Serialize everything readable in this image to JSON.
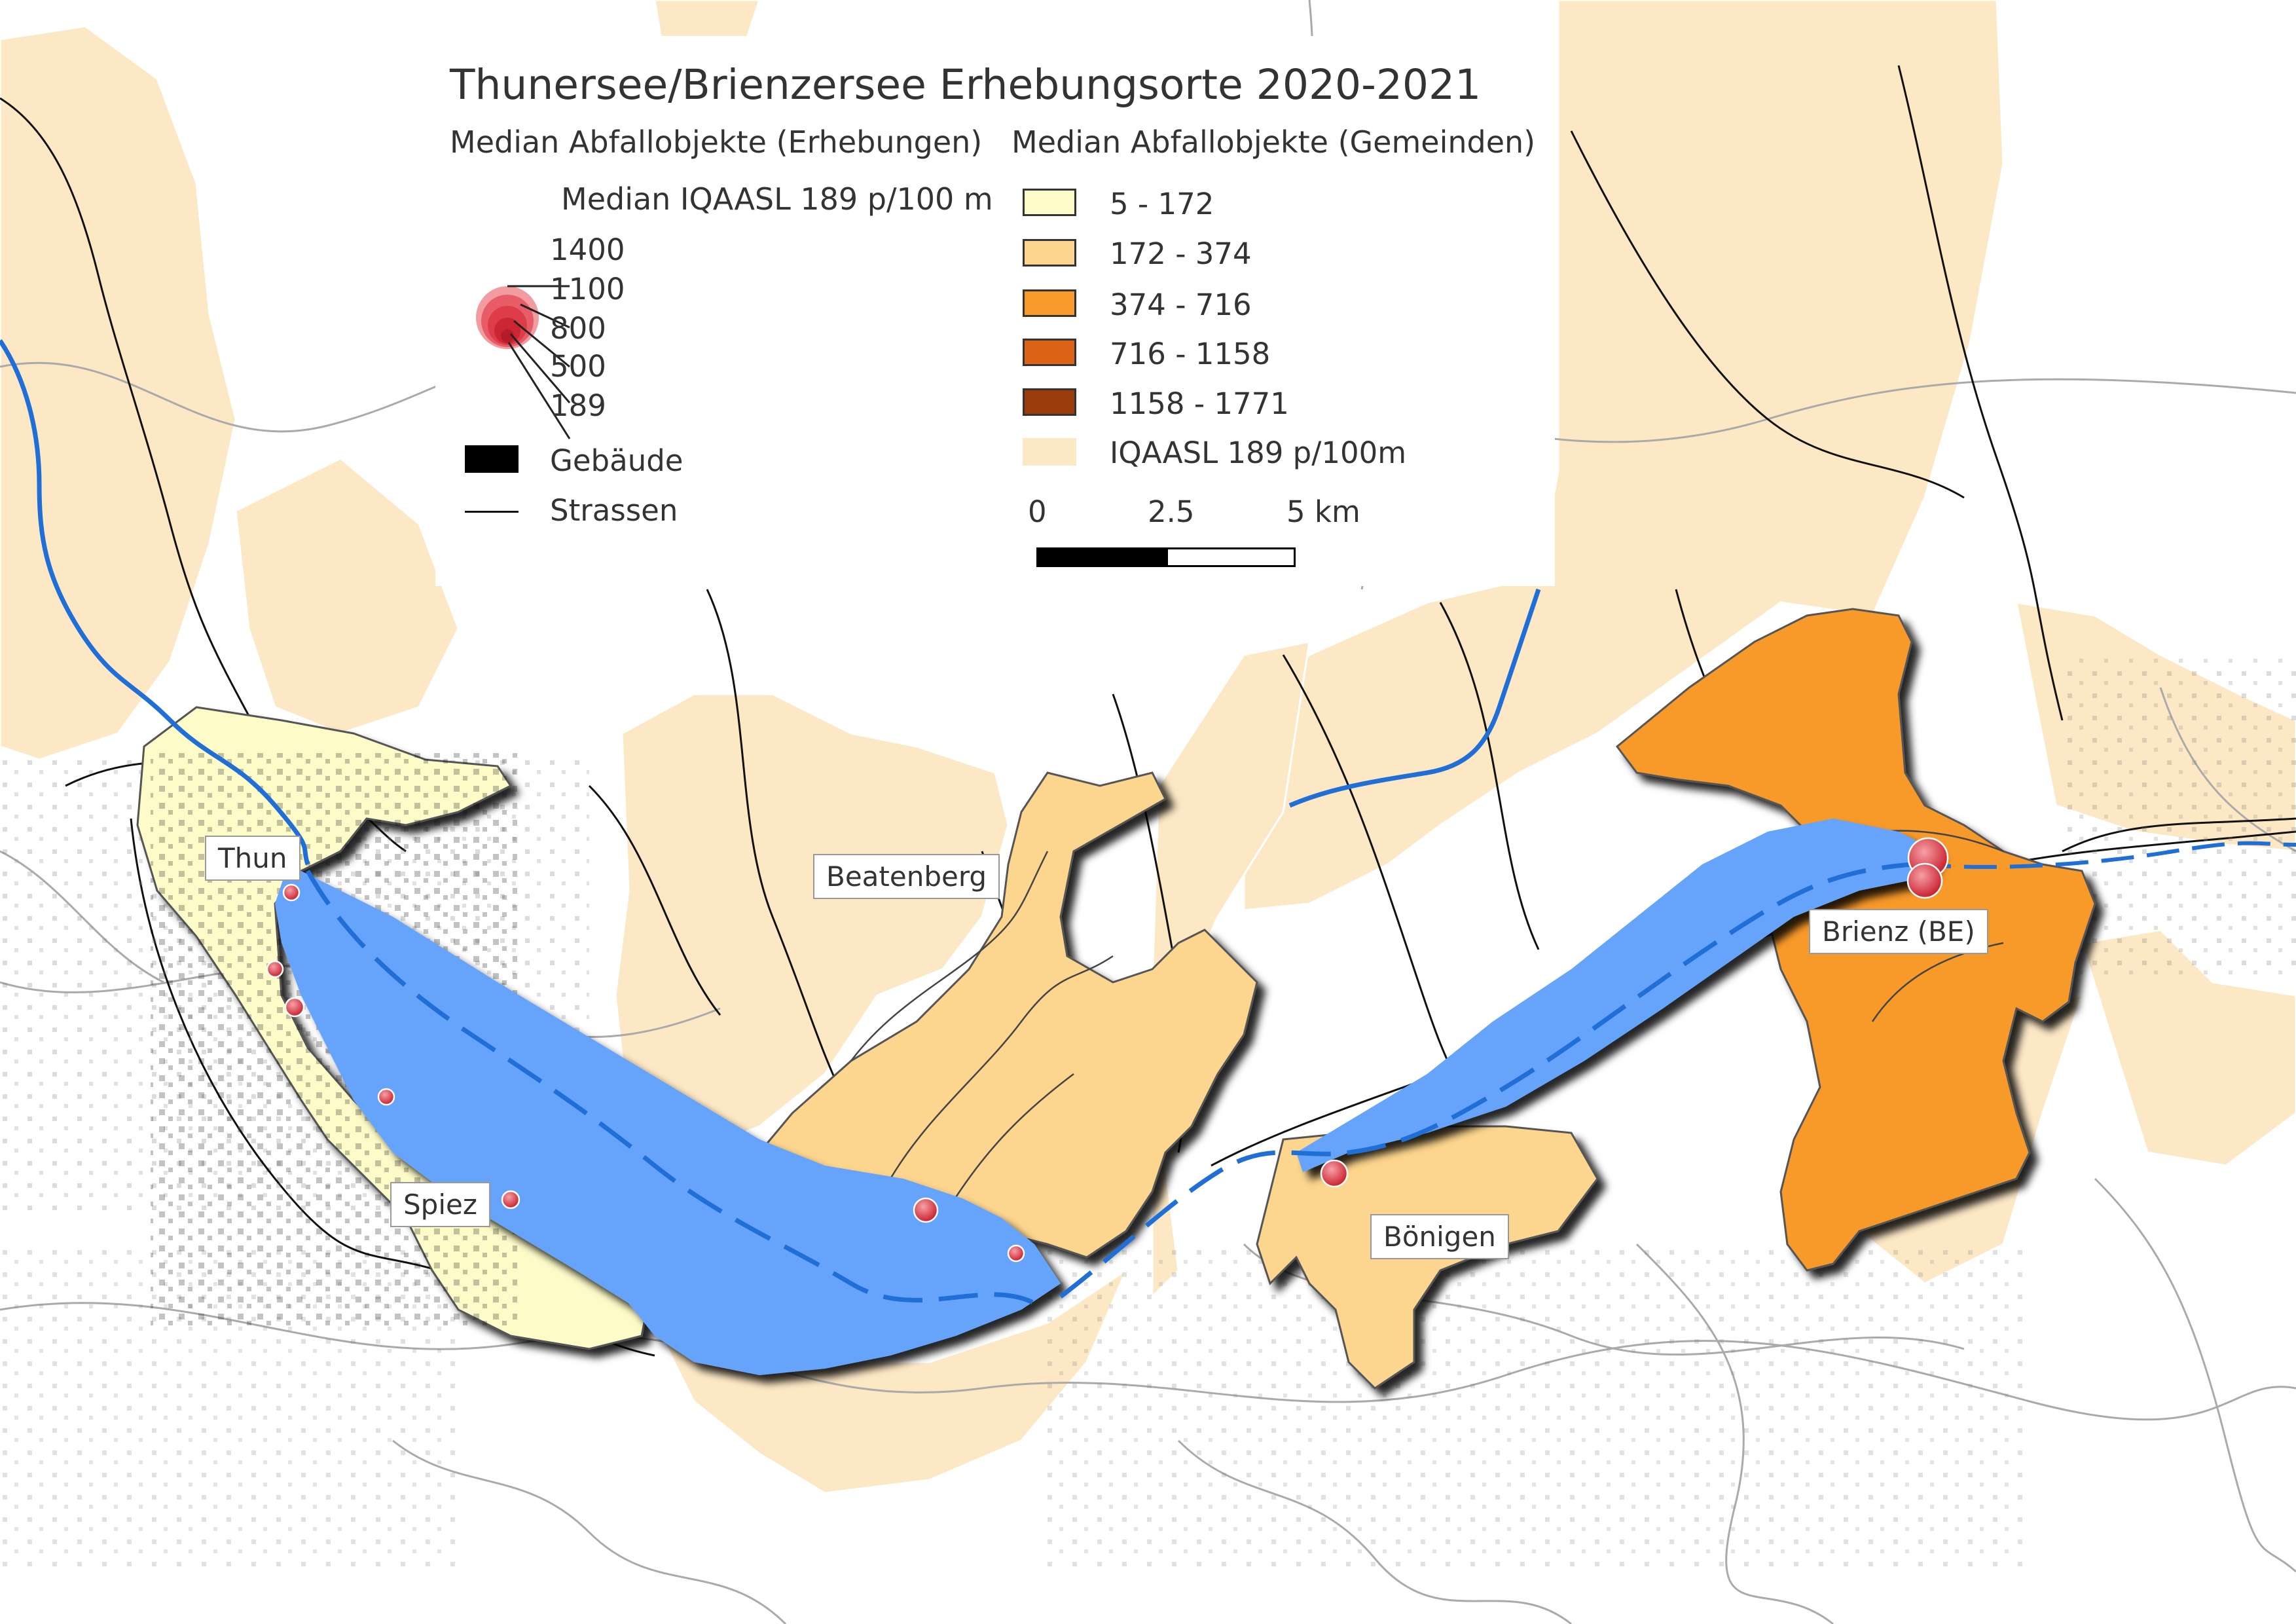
{
  "map": {
    "title": "Thunersee/Brienzersee Erhebungsorte 2020-2021",
    "legend_left": {
      "heading": "Median Abfallobjekte (Erhebungen)",
      "median_label": "Median IQAASL 189 p/100 m",
      "bubble_values": [
        "1400",
        "1100",
        "800",
        "500",
        "189"
      ],
      "buildings_label": "Gebäude",
      "roads_label": "Strassen"
    },
    "legend_right": {
      "heading": "Median Abfallobjekte (Gemeinden)",
      "classes": [
        {
          "label": "5 - 172",
          "color": "#fdfcc9"
        },
        {
          "label": "172 - 374",
          "color": "#fcd58e"
        },
        {
          "label": "374 - 716",
          "color": "#f89a2c"
        },
        {
          "label": "716 - 1158",
          "color": "#dd6317"
        },
        {
          "label": "1158 - 1771",
          "color": "#9a3b0c"
        },
        {
          "label": "IQAASL 189 p/100m",
          "color": "#fde8c6"
        }
      ],
      "scale_labels": [
        "0",
        "2.5",
        "5 km"
      ]
    },
    "places": [
      "Thun",
      "Beatenberg",
      "Spiez",
      "Bönigen",
      "Brienz (BE)"
    ],
    "colors": {
      "lake": "#66a3fa",
      "river": "#1f6fd6",
      "background_municipality": "#fde8c6",
      "survey_point": "#d9333f"
    }
  }
}
